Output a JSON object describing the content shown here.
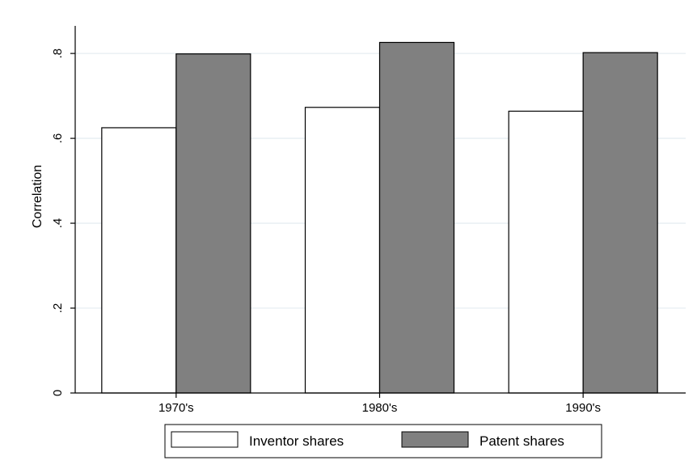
{
  "chart_data": {
    "type": "bar",
    "categories": [
      "1970's",
      "1980's",
      "1990's"
    ],
    "series": [
      {
        "name": "Inventor shares",
        "values": [
          0.625,
          0.673,
          0.664
        ],
        "color": "#ffffff"
      },
      {
        "name": "Patent shares",
        "values": [
          0.799,
          0.826,
          0.802
        ],
        "color": "#808080"
      }
    ],
    "ylabel": "Correlation",
    "xlabel": "",
    "ylim": [
      0,
      0.865
    ],
    "yticks": [
      0,
      0.2,
      0.4,
      0.6,
      0.8
    ],
    "ytick_labels": [
      "0",
      ".2",
      ".4",
      ".6",
      ".8"
    ],
    "grid": true,
    "legend_position": "bottom"
  }
}
